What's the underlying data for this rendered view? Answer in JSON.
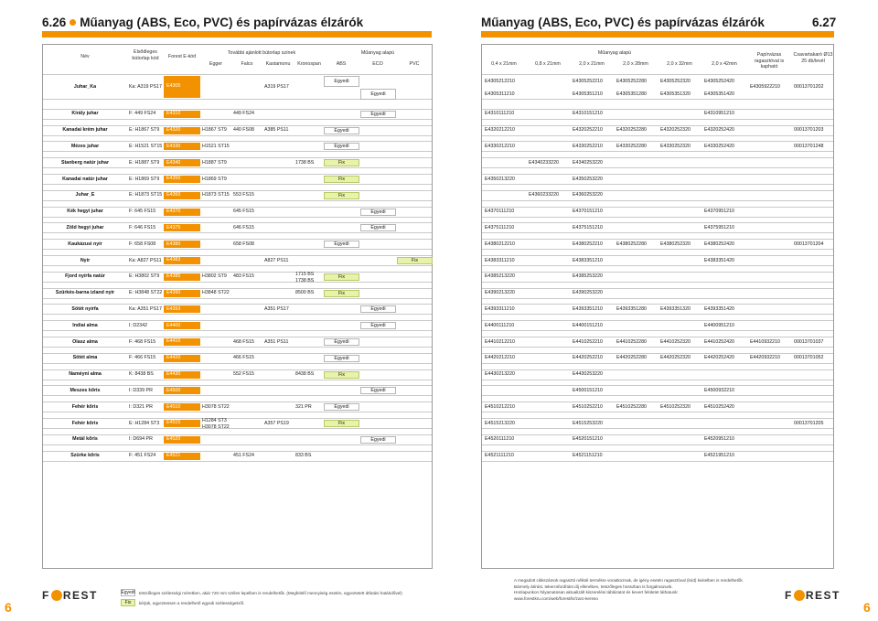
{
  "header": {
    "left_number": "6.26",
    "left_title": "Műanyag (ABS, Eco, PVC) és papírvázas élzárók",
    "right_title": "Műanyag (ABS, Eco, PVC) és papírvázas élzárók",
    "right_number": "6.27"
  },
  "left_columns": {
    "name": "Név",
    "color_code": "Elsődleges bútorlap kód",
    "forest_code": "Forest E-kód",
    "other_boards": "További ajánlott bútorlap színek",
    "egger": "Egger",
    "falco": "Falco",
    "kastamonu": "Kastamonu",
    "kronospan": "Kronospan",
    "plastic_base": "Műanyag alapú",
    "abs": "ABS",
    "eco": "ECO",
    "pvc": "PVC"
  },
  "right_columns": {
    "plastic_base": "Műanyag alapú",
    "sizes": [
      "0,4 x 21mm",
      "0,8 x 21mm",
      "2,0 x 21mm",
      "2,0 x 28mm",
      "2,0 x 32mm",
      "2,0 x 42mm"
    ],
    "paper": "Papírvázas ragasztóval is kapható",
    "screw": "Csavartakaró Ø13 25 db/levél"
  },
  "rows": [
    {
      "name": "Juhar_Ka",
      "code": "Ka: A319 PS17",
      "fc": "E4305",
      "egger": "",
      "falco": "",
      "kastamonu": "A319 PS17",
      "kronospan": "",
      "mtype": [
        "Egyedi",
        "Egyedi"
      ],
      "mcol": [
        0,
        1
      ],
      "r1": [
        "E4305212210",
        "",
        "E4305252210",
        "E4305252280",
        "E4305252320",
        "E4305252420"
      ],
      "r2": [
        "E4305311210",
        "",
        "E4305351210",
        "E4305351280",
        "E4305351320",
        "E4305351420"
      ],
      "paper": "E4305922210",
      "screw": "00013701202"
    },
    {
      "name": "Király juhar",
      "code": "F: 449 FS24",
      "fc": "E4310",
      "egger": "",
      "falco": "449 FS24",
      "kastamonu": "",
      "kronospan": "",
      "mtype": [
        "Egyedi"
      ],
      "mcol": [
        1
      ],
      "r1": [
        "E4310111210",
        "",
        "E4310151210",
        "",
        "",
        "E4310951210"
      ],
      "paper": "",
      "screw": ""
    },
    {
      "name": "Kanadai krém juhar",
      "code": "E: H1867 ST9",
      "fc": "E4320",
      "egger": "H1867 ST9",
      "falco": "440 FS08",
      "kastamonu": "A385 PS11",
      "kronospan": "",
      "mtype": [
        "Egyedi"
      ],
      "mcol": [
        0
      ],
      "r1": [
        "E4320212210",
        "",
        "E4320252210",
        "E4320252280",
        "E4320252320",
        "E4320252420"
      ],
      "paper": "",
      "screw": "00013701203"
    },
    {
      "name": "Mézes juhar",
      "code": "E: H1521 ST15",
      "fc": "E4330",
      "egger": "H1521 ST15",
      "falco": "",
      "kastamonu": "",
      "kronospan": "",
      "mtype": [
        "Egyedi"
      ],
      "mcol": [
        0
      ],
      "r1": [
        "E4330212210",
        "",
        "E4330252210",
        "E4330252280",
        "E4330252320",
        "E4330252420"
      ],
      "paper": "",
      "screw": "00013701248"
    },
    {
      "name": "Stanberg natúr juhar",
      "code": "E: H1887 ST9",
      "fc": "E4340",
      "egger": "H1887 ST9",
      "falco": "",
      "kastamonu": "",
      "kronospan": "1738 BS",
      "mtype": [
        "Fix"
      ],
      "mcol": [
        0
      ],
      "r1": [
        "",
        "E4340233220",
        "E4340253220",
        "",
        "",
        ""
      ],
      "paper": "",
      "screw": ""
    },
    {
      "name": "Kanadai natúr juhar",
      "code": "E: H1869 ST9",
      "fc": "E4350",
      "egger": "H1869 ST9",
      "falco": "",
      "kastamonu": "",
      "kronospan": "",
      "mtype": [
        "Fix"
      ],
      "mcol": [
        0
      ],
      "r1": [
        "E4350213220",
        "",
        "E4350253220",
        "",
        "",
        ""
      ],
      "paper": "",
      "screw": ""
    },
    {
      "name": "Juhar_E",
      "code": "E: H1873 ST15",
      "fc": "E4360",
      "egger": "H1873 ST15",
      "falco": "553 FS15",
      "kastamonu": "",
      "kronospan": "",
      "mtype": [
        "Fix"
      ],
      "mcol": [
        0
      ],
      "r1": [
        "",
        "E4360233220",
        "E4360253220",
        "",
        "",
        ""
      ],
      "paper": "",
      "screw": ""
    },
    {
      "name": "Kék hegyi juhar",
      "code": "F: 645 FS15",
      "fc": "E4370",
      "egger": "",
      "falco": "645 FS15",
      "kastamonu": "",
      "kronospan": "",
      "mtype": [
        "Egyedi"
      ],
      "mcol": [
        1
      ],
      "r1": [
        "E4370111210",
        "",
        "E4370151210",
        "",
        "",
        "E4370951210"
      ],
      "paper": "",
      "screw": ""
    },
    {
      "name": "Zöld hegyi juhar",
      "code": "F: 646 FS15",
      "fc": "E4375",
      "egger": "",
      "falco": "646 FS15",
      "kastamonu": "",
      "kronospan": "",
      "mtype": [
        "Egyedi"
      ],
      "mcol": [
        1
      ],
      "r1": [
        "E4375111210",
        "",
        "E4375151210",
        "",
        "",
        "E4375951210"
      ],
      "paper": "",
      "screw": ""
    },
    {
      "name": "Kaukázusi nyír",
      "code": "F: 658 FS08",
      "fc": "E4380",
      "egger": "",
      "falco": "658 FS08",
      "kastamonu": "",
      "kronospan": "",
      "mtype": [
        "Egyedi"
      ],
      "mcol": [
        0
      ],
      "r1": [
        "E4380212210",
        "",
        "E4380252210",
        "E4380252280",
        "E4380252320",
        "E4380252420"
      ],
      "paper": "",
      "screw": "00013701204"
    },
    {
      "name": "Nyír",
      "code": "Ka: A827 PS11",
      "fc": "E4383",
      "egger": "",
      "falco": "",
      "kastamonu": "A827 PS11",
      "kronospan": "",
      "mtype": [
        "Fix"
      ],
      "mcol": [
        2
      ],
      "r1": [
        "E4383311210",
        "",
        "E4383351210",
        "",
        "",
        "E4383351420"
      ],
      "paper": "",
      "screw": ""
    },
    {
      "name": "Fjord nyírfa natúr",
      "code": "E: H3802 ST9",
      "fc": "E4385",
      "egger": "H3802 ST9",
      "falco": "483 FS15",
      "kastamonu": "",
      "kronospan": "1715 BS\n1738 BS",
      "mtype": [
        "Fix"
      ],
      "mcol": [
        0
      ],
      "r1": [
        "E4385213220",
        "",
        "E4385253220",
        "",
        "",
        ""
      ],
      "paper": "",
      "screw": ""
    },
    {
      "name": "Szürkés-barna izland nyír",
      "code": "E: H3848 ST22",
      "fc": "E4390",
      "egger": "H3848 ST22",
      "falco": "",
      "kastamonu": "",
      "kronospan": "8500 BS",
      "mtype": [
        "Fix"
      ],
      "mcol": [
        0
      ],
      "r1": [
        "E4390213220",
        "",
        "E4390253220",
        "",
        "",
        ""
      ],
      "paper": "",
      "screw": ""
    },
    {
      "name": "Sötét nyírfa",
      "code": "Ka: A351 PS17",
      "fc": "E4393",
      "egger": "",
      "falco": "",
      "kastamonu": "A351 PS17",
      "kronospan": "",
      "mtype": [
        "Egyedi"
      ],
      "mcol": [
        1
      ],
      "r1": [
        "E4393311210",
        "",
        "E4393351210",
        "E4393351280",
        "E4393351320",
        "E4393351420"
      ],
      "paper": "",
      "screw": ""
    },
    {
      "name": "Indiai alma",
      "code": "I: D2342",
      "fc": "E4400",
      "egger": "",
      "falco": "",
      "kastamonu": "",
      "kronospan": "",
      "mtype": [
        "Egyedi"
      ],
      "mcol": [
        1
      ],
      "r1": [
        "E4400111210",
        "",
        "E4400151210",
        "",
        "",
        "E4400951210"
      ],
      "paper": "",
      "screw": ""
    },
    {
      "name": "Olasz alma",
      "code": "F: 468 FS15",
      "fc": "E4410",
      "egger": "",
      "falco": "468 FS15",
      "kastamonu": "A351 PS11",
      "kronospan": "",
      "mtype": [
        "Egyedi"
      ],
      "mcol": [
        0
      ],
      "r1": [
        "E4410212210",
        "",
        "E4410252210",
        "E4410252280",
        "E4410252320",
        "E4410252420"
      ],
      "paper": "E4410932210",
      "screw": "00013701037"
    },
    {
      "name": "Sötét alma",
      "code": "F: 466 FS15",
      "fc": "E4420",
      "egger": "",
      "falco": "466 FS15",
      "kastamonu": "",
      "kronospan": "",
      "mtype": [
        "Egyedi"
      ],
      "mcol": [
        0
      ],
      "r1": [
        "E4420212210",
        "",
        "E4420252210",
        "E4420252280",
        "E4420252320",
        "E4420252420"
      ],
      "paper": "E4420932210",
      "screw": "00013701052"
    },
    {
      "name": "Naméyni alma",
      "code": "K: 8438 BS",
      "fc": "E4430",
      "egger": "",
      "falco": "552 FS15",
      "kastamonu": "",
      "kronospan": "8438 BS",
      "mtype": [
        "Fix"
      ],
      "mcol": [
        0
      ],
      "r1": [
        "E4430213220",
        "",
        "E4430253220",
        "",
        "",
        ""
      ],
      "paper": "",
      "screw": ""
    },
    {
      "name": "Meszes kőris",
      "code": "I: D339 PR",
      "fc": "E4500",
      "egger": "",
      "falco": "",
      "kastamonu": "",
      "kronospan": "",
      "mtype": [
        "Egyedi"
      ],
      "mcol": [
        1
      ],
      "r1": [
        "",
        "",
        "E4500151210",
        "",
        "",
        "E4500932210"
      ],
      "paper": "",
      "screw": ""
    },
    {
      "name": "Fehér kőris",
      "code": "I: D321 PR",
      "fc": "E4510",
      "egger": "H3078 ST22",
      "falco": "",
      "kastamonu": "",
      "kronospan": "321 PR",
      "mtype": [
        "Egyedi"
      ],
      "mcol": [
        0
      ],
      "r1": [
        "E4510212210",
        "",
        "E4510252210",
        "E4510252280",
        "E4510252320",
        "E4510252420"
      ],
      "paper": "",
      "screw": ""
    },
    {
      "name": "Fehér kőris",
      "code": "E: H1284 ST3",
      "fc": "E4515",
      "egger": "H1284 ST3\nH3078 ST22",
      "falco": "",
      "kastamonu": "A357 PS19",
      "kronospan": "",
      "mtype": [
        "Fix"
      ],
      "mcol": [
        0
      ],
      "r1": [
        "E4515213220",
        "",
        "E4515253220",
        "",
        "",
        ""
      ],
      "paper": "",
      "screw": "00013701205"
    },
    {
      "name": "Metál kőris",
      "code": "I: D694 PR",
      "fc": "E4520",
      "egger": "",
      "falco": "",
      "kastamonu": "",
      "kronospan": "",
      "mtype": [
        "Egyedi"
      ],
      "mcol": [
        1
      ],
      "r1": [
        "E4520111210",
        "",
        "E4520151210",
        "",
        "",
        "E4520951210"
      ],
      "paper": "",
      "screw": ""
    },
    {
      "name": "Szürke kőris",
      "code": "F: 451 FS24",
      "fc": "E4521",
      "egger": "",
      "falco": "451 FS24",
      "kastamonu": "",
      "kronospan": "833 BS",
      "mtype": [],
      "mcol": [],
      "r1": [
        "E4521111210",
        "",
        "E4521151210",
        "",
        "",
        "E4521951210"
      ],
      "paper": "",
      "screw": ""
    }
  ],
  "legend": {
    "egyedi_box": "Egyedi",
    "egyedi_text": "tetszőleges szélességi méretben, akár 720 mm széles lepelben is rendelhetők. (Megfelelő mennyiség esetén, egyeztetett átfutási határidővel)",
    "fix_box": "Fix",
    "fix_text": "kérjük, egyeztessen a rendelhető egyedi szélességekről."
  },
  "footnote": [
    "A megadott cikkszámok ragasztó nélküli termékre vonatkoznak, de igény esetén ragasztóval (kód) kivitelben is rendelhetők.",
    "Bármely átírást, tekercsfordítást díj ellenében, tetszőleges hosszban is forgalmazunk.",
    "Honlapunkon folyamatosan aktualizált kiszerelési táblázatot és kevert felületet láthatunk:",
    "www.forestkru.com/web/forest/kr/zaro-kereso"
  ],
  "brand": "FOREST",
  "page_left": "6",
  "page_right": "6"
}
